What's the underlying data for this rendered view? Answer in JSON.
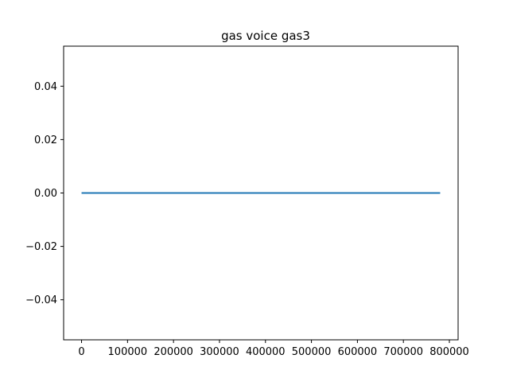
{
  "chart_data": {
    "type": "line",
    "title": "gas voice  gas3",
    "xlabel": "",
    "ylabel": "",
    "xlim": [
      -39000,
      819000
    ],
    "ylim": [
      -0.055,
      0.055
    ],
    "grid": false,
    "x_ticks": [
      0,
      100000,
      200000,
      300000,
      400000,
      500000,
      600000,
      700000,
      800000
    ],
    "x_tick_labels": [
      "0",
      "100000",
      "200000",
      "300000",
      "400000",
      "500000",
      "600000",
      "700000",
      "800000"
    ],
    "y_ticks": [
      -0.04,
      -0.02,
      0.0,
      0.02,
      0.04
    ],
    "y_tick_labels": [
      "−0.04",
      "−0.02",
      "0.00",
      "0.02",
      "0.04"
    ],
    "series": [
      {
        "color": "#1f77b4",
        "x": [
          0,
          780000
        ],
        "y": [
          0,
          0
        ]
      }
    ]
  }
}
